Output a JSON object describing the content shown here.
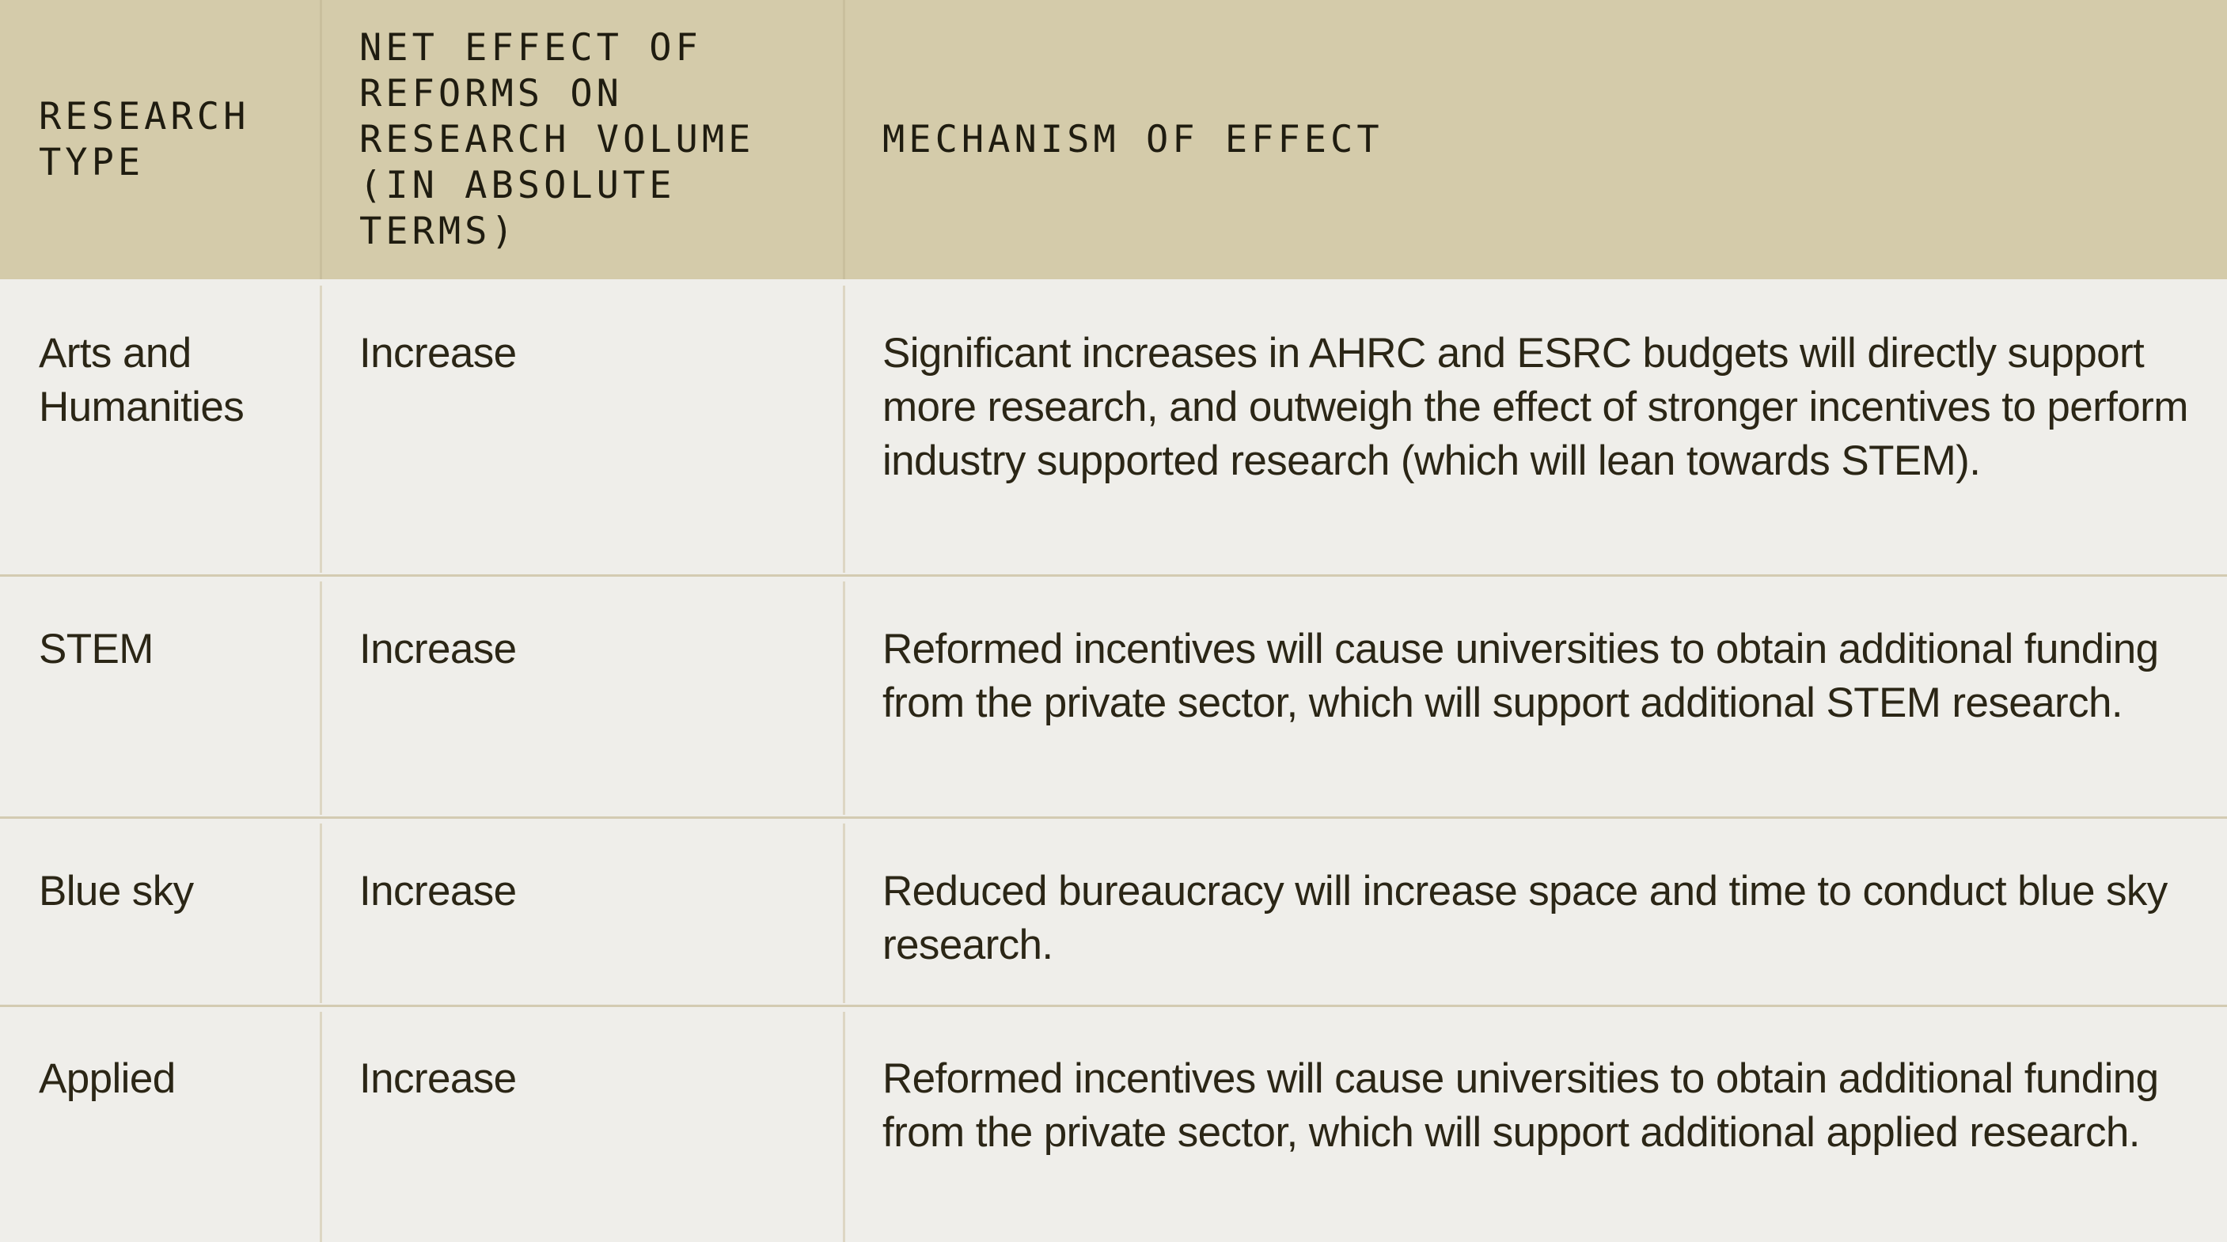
{
  "table": {
    "headers": [
      "RESEARCH\nTYPE",
      "NET EFFECT OF\nREFORMS ON\nRESEARCH VOLUME\n(IN ABSOLUTE\nTERMS)",
      "MECHANISM OF EFFECT"
    ],
    "rows": [
      {
        "type": "Arts and Humanities",
        "effect": "Increase",
        "mechanism": "Significant increases in AHRC and ESRC budgets will directly support more research, and outweigh the effect of stronger incentives to perform industry supported research (which will lean towards STEM)."
      },
      {
        "type": "STEM",
        "effect": "Increase",
        "mechanism": "Reformed incentives will cause universities to obtain additional funding from the private sector, which will support additional STEM research."
      },
      {
        "type": "Blue sky",
        "effect": "Increase",
        "mechanism": "Reduced bureaucracy will increase space and time to conduct blue sky research."
      },
      {
        "type": "Applied",
        "effect": "Increase",
        "mechanism": "Reformed incentives will cause universities to obtain additional funding from the private sector, which will support additional applied research."
      }
    ]
  },
  "colors": {
    "header_background": "#d4cbaa",
    "body_background": "#efeeea",
    "text": "#2b2616",
    "rule": "#d3cbb2"
  }
}
